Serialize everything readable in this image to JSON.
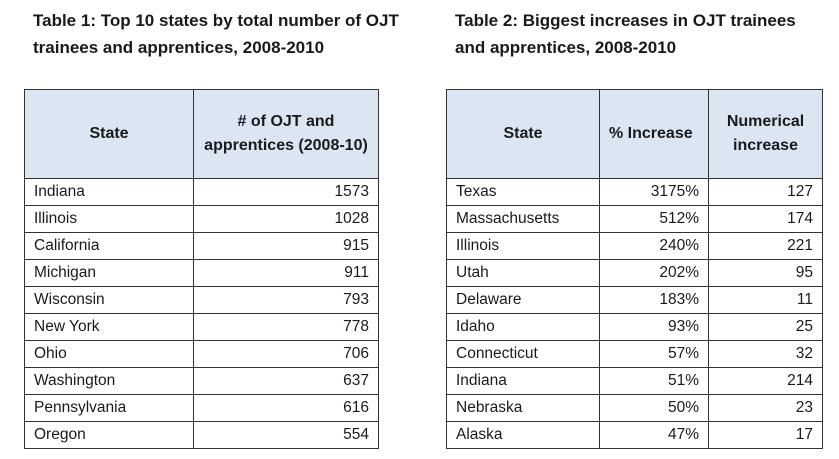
{
  "table1": {
    "caption": "Table 1: Top 10 states by total number of OJT trainees and apprentices, 2008-2010",
    "headers": [
      "State",
      "# of OJT and apprentices (2008-10)"
    ],
    "rows": [
      {
        "state": "Indiana",
        "count": "1573"
      },
      {
        "state": "Illinois",
        "count": "1028"
      },
      {
        "state": "California",
        "count": "915"
      },
      {
        "state": "Michigan",
        "count": "911"
      },
      {
        "state": "Wisconsin",
        "count": "793"
      },
      {
        "state": "New York",
        "count": "778"
      },
      {
        "state": "Ohio",
        "count": "706"
      },
      {
        "state": "Washington",
        "count": "637"
      },
      {
        "state": "Pennsylvania",
        "count": "616"
      },
      {
        "state": "Oregon",
        "count": "554"
      }
    ]
  },
  "table2": {
    "caption": "Table 2: Biggest increases in OJT trainees and apprentices, 2008-2010",
    "headers": [
      "State",
      "% Increase",
      "Numerical increase"
    ],
    "rows": [
      {
        "state": "Texas",
        "pct": "3175%",
        "num": "127"
      },
      {
        "state": "Massachusetts",
        "pct": "512%",
        "num": "174"
      },
      {
        "state": "Illinois",
        "pct": "240%",
        "num": "221"
      },
      {
        "state": "Utah",
        "pct": "202%",
        "num": "95"
      },
      {
        "state": "Delaware",
        "pct": "183%",
        "num": "11"
      },
      {
        "state": "Idaho",
        "pct": "93%",
        "num": "25"
      },
      {
        "state": "Connecticut",
        "pct": "57%",
        "num": "32"
      },
      {
        "state": "Indiana",
        "pct": "51%",
        "num": "214"
      },
      {
        "state": "Nebraska",
        "pct": "50%",
        "num": "23"
      },
      {
        "state": "Alaska",
        "pct": "47%",
        "num": "17"
      }
    ]
  }
}
